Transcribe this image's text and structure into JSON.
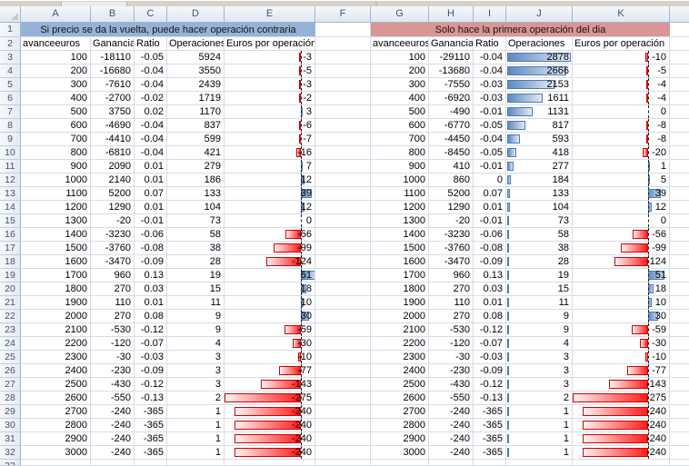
{
  "window": {
    "app": "Excel worksheet",
    "column_letters": [
      "A",
      "B",
      "C",
      "D",
      "E",
      "F",
      "G",
      "H",
      "I",
      "J",
      "K"
    ],
    "visible_row_numbers_from": 1,
    "visible_row_numbers_to": 33
  },
  "colors": {
    "title_blue": "#95B3D7",
    "title_red": "#D99694",
    "bar_blue": "#638EC6",
    "bar_red": "#FF1D1D",
    "bar_border_blue": "#4E7AB5",
    "bar_border_red": "#D40000",
    "gridline": "#D5DCE8"
  },
  "left_table": {
    "title": "Si precio se da la vuelta, puede hacer operación contraria",
    "columns": [
      "avanceeuros",
      "Ganancia",
      "Ratio",
      "Operaciones",
      "Euros por operación"
    ],
    "rows": [
      [
        "100",
        "-18110",
        "-0.05",
        "5924",
        "-3"
      ],
      [
        "200",
        "-16680",
        "-0.04",
        "3550",
        "-5"
      ],
      [
        "300",
        "-7610",
        "-0.04",
        "2439",
        "-3"
      ],
      [
        "400",
        "-2700",
        "-0.02",
        "1719",
        "-2"
      ],
      [
        "500",
        "3750",
        "0.02",
        "1170",
        "3"
      ],
      [
        "600",
        "-4690",
        "-0.04",
        "837",
        "-6"
      ],
      [
        "700",
        "-4410",
        "-0.04",
        "599",
        "-7"
      ],
      [
        "800",
        "-6810",
        "-0.04",
        "421",
        "-16"
      ],
      [
        "900",
        "2090",
        "0.01",
        "279",
        "7"
      ],
      [
        "1000",
        "2140",
        "0.01",
        "186",
        "12"
      ],
      [
        "1100",
        "5200",
        "0.07",
        "133",
        "39"
      ],
      [
        "1200",
        "1290",
        "0.01",
        "104",
        "12"
      ],
      [
        "1300",
        "-20",
        "-0.01",
        "73",
        "0"
      ],
      [
        "1400",
        "-3230",
        "-0.06",
        "58",
        "-56"
      ],
      [
        "1500",
        "-3760",
        "-0.08",
        "38",
        "-99"
      ],
      [
        "1600",
        "-3470",
        "-0.09",
        "28",
        "-124"
      ],
      [
        "1700",
        "960",
        "0.13",
        "19",
        "51"
      ],
      [
        "1800",
        "270",
        "0.03",
        "15",
        "18"
      ],
      [
        "1900",
        "110",
        "0.01",
        "11",
        "10"
      ],
      [
        "2000",
        "270",
        "0.08",
        "9",
        "30"
      ],
      [
        "2100",
        "-530",
        "-0.12",
        "9",
        "-59"
      ],
      [
        "2200",
        "-120",
        "-0.07",
        "4",
        "-30"
      ],
      [
        "2300",
        "-30",
        "-0.03",
        "3",
        "-10"
      ],
      [
        "2400",
        "-230",
        "-0.09",
        "3",
        "-77"
      ],
      [
        "2500",
        "-430",
        "-0.12",
        "3",
        "-143"
      ],
      [
        "2600",
        "-550",
        "-0.13",
        "2",
        "-275"
      ],
      [
        "2700",
        "-240",
        "-365",
        "1",
        "-240"
      ],
      [
        "2800",
        "-240",
        "-365",
        "1",
        "-240"
      ],
      [
        "2900",
        "-240",
        "-365",
        "1",
        "-240"
      ],
      [
        "3000",
        "-240",
        "-365",
        "1",
        "-240"
      ]
    ]
  },
  "right_table": {
    "title": "Solo hace la primera operación del dia",
    "columns": [
      "avanceeuros",
      "Ganancia",
      "Ratio",
      "Operaciones",
      "Euros por operación"
    ],
    "rows": [
      [
        "100",
        "-29110",
        "-0.04",
        "2878",
        "-10"
      ],
      [
        "200",
        "-13680",
        "-0.04",
        "2666",
        "-5"
      ],
      [
        "300",
        "-7550",
        "-0.03",
        "2153",
        "-4"
      ],
      [
        "400",
        "-6920",
        "-0.03",
        "1611",
        "-4"
      ],
      [
        "500",
        "-490",
        "-0.01",
        "1131",
        "0"
      ],
      [
        "600",
        "-6770",
        "-0.05",
        "817",
        "-8"
      ],
      [
        "700",
        "-4450",
        "-0.04",
        "593",
        "-8"
      ],
      [
        "800",
        "-8450",
        "-0.05",
        "418",
        "-20"
      ],
      [
        "900",
        "410",
        "-0.01",
        "277",
        "1"
      ],
      [
        "1000",
        "860",
        "0",
        "184",
        "5"
      ],
      [
        "1100",
        "5200",
        "0.07",
        "133",
        "39"
      ],
      [
        "1200",
        "1290",
        "0.01",
        "104",
        "12"
      ],
      [
        "1300",
        "-20",
        "-0.01",
        "73",
        "0"
      ],
      [
        "1400",
        "-3230",
        "-0.06",
        "58",
        "-56"
      ],
      [
        "1500",
        "-3760",
        "-0.08",
        "38",
        "-99"
      ],
      [
        "1600",
        "-3470",
        "-0.09",
        "28",
        "-124"
      ],
      [
        "1700",
        "960",
        "0.13",
        "19",
        "51"
      ],
      [
        "1800",
        "270",
        "0.03",
        "15",
        "18"
      ],
      [
        "1900",
        "110",
        "0.01",
        "11",
        "10"
      ],
      [
        "2000",
        "270",
        "0.08",
        "9",
        "30"
      ],
      [
        "2100",
        "-530",
        "-0.12",
        "9",
        "-59"
      ],
      [
        "2200",
        "-120",
        "-0.07",
        "4",
        "-30"
      ],
      [
        "2300",
        "-30",
        "-0.03",
        "3",
        "-10"
      ],
      [
        "2400",
        "-230",
        "-0.09",
        "3",
        "-77"
      ],
      [
        "2500",
        "-430",
        "-0.12",
        "3",
        "-143"
      ],
      [
        "2600",
        "-550",
        "-0.13",
        "2",
        "-275"
      ],
      [
        "2700",
        "-240",
        "-365",
        "1",
        "-240"
      ],
      [
        "2800",
        "-240",
        "-365",
        "1",
        "-240"
      ],
      [
        "2900",
        "-240",
        "-365",
        "1",
        "-240"
      ],
      [
        "3000",
        "-240",
        "-365",
        "1",
        "-240"
      ]
    ]
  },
  "databars": {
    "euros_negative_max": 275,
    "euros_positive_max": 51,
    "operaciones_max": 2878
  }
}
